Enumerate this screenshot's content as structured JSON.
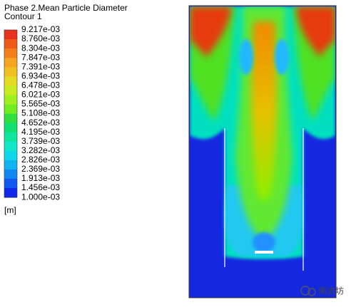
{
  "legend": {
    "title": "Phase 2.Mean Particle Diameter",
    "subtitle": "Contour 1",
    "labels": [
      "9.217e-03",
      "8.760e-03",
      "8.304e-03",
      "7.847e-03",
      "7.391e-03",
      "6.934e-03",
      "6.478e-03",
      "6.021e-03",
      "5.565e-03",
      "5.108e-03",
      "4.652e-03",
      "4.195e-03",
      "3.739e-03",
      "3.282e-03",
      "2.826e-03",
      "2.369e-03",
      "1.913e-03",
      "1.456e-03",
      "1.000e-03"
    ],
    "unit": "[m]"
  },
  "watermark": "南流坊"
}
